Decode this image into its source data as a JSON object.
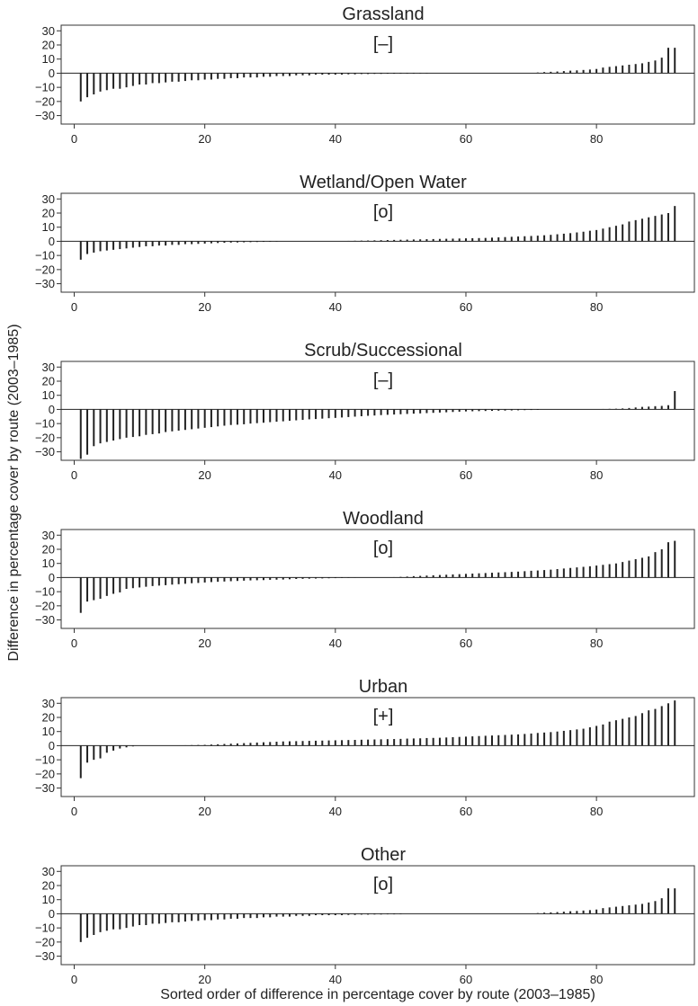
{
  "shared": {
    "ylabel": "Difference in percentage cover by route (2003–1985)",
    "xlabel": "Sorted order of difference in percentage cover by route (2003–1985)",
    "x_ticks": [
      20,
      40,
      60,
      80
    ],
    "y_ticks": [
      30,
      20,
      10,
      0,
      -10,
      -20,
      -30
    ],
    "xlim": [
      -2,
      95
    ],
    "ylim": [
      -36,
      34
    ]
  },
  "chart_data": [
    {
      "type": "bar",
      "title": "Grassland",
      "annotation": "[–]",
      "x": [
        1,
        2,
        3,
        4,
        5,
        6,
        7,
        8,
        9,
        10,
        11,
        12,
        13,
        14,
        15,
        16,
        17,
        18,
        19,
        20,
        21,
        22,
        23,
        24,
        25,
        26,
        27,
        28,
        29,
        30,
        31,
        32,
        33,
        34,
        35,
        36,
        37,
        38,
        39,
        40,
        41,
        42,
        43,
        44,
        45,
        46,
        47,
        48,
        49,
        50,
        51,
        52,
        53,
        54,
        55,
        56,
        57,
        58,
        59,
        60,
        61,
        62,
        63,
        64,
        65,
        66,
        67,
        68,
        69,
        70,
        71,
        72,
        73,
        74,
        75,
        76,
        77,
        78,
        79,
        80,
        81,
        82,
        83,
        84,
        85,
        86,
        87,
        88,
        89,
        90,
        91,
        92
      ],
      "values": [
        -20,
        -17,
        -15,
        -13,
        -12,
        -11,
        -11,
        -10,
        -9,
        -8,
        -8,
        -7,
        -7,
        -6.5,
        -6,
        -6,
        -5.5,
        -5,
        -5,
        -4.5,
        -4.5,
        -4,
        -4,
        -3.5,
        -3.5,
        -3,
        -3,
        -3,
        -2.5,
        -2.5,
        -2,
        -2,
        -2,
        -1.5,
        -1.5,
        -1.5,
        -1,
        -1,
        -1,
        -1,
        -1,
        -0.8,
        -0.8,
        -0.6,
        -0.6,
        -0.5,
        -0.5,
        -0.4,
        -0.4,
        -0.3,
        -0.3,
        -0.3,
        -0.2,
        -0.2,
        0,
        0,
        0,
        0,
        0,
        0,
        0,
        0,
        0,
        0,
        0,
        0,
        0,
        0,
        0,
        0,
        0.5,
        0.8,
        1,
        1.2,
        1.5,
        1.8,
        2,
        2.3,
        2.6,
        3,
        4,
        4.5,
        5,
        5.5,
        6,
        6.5,
        7,
        8,
        9,
        11,
        18,
        18
      ]
    },
    {
      "type": "bar",
      "title": "Wetland/Open Water",
      "annotation": "[o]",
      "x": [
        1,
        2,
        3,
        4,
        5,
        6,
        7,
        8,
        9,
        10,
        11,
        12,
        13,
        14,
        15,
        16,
        17,
        18,
        19,
        20,
        21,
        22,
        23,
        24,
        25,
        26,
        27,
        28,
        29,
        30,
        31,
        32,
        33,
        34,
        35,
        36,
        37,
        38,
        39,
        40,
        41,
        42,
        43,
        44,
        45,
        46,
        47,
        48,
        49,
        50,
        51,
        52,
        53,
        54,
        55,
        56,
        57,
        58,
        59,
        60,
        61,
        62,
        63,
        64,
        65,
        66,
        67,
        68,
        69,
        70,
        71,
        72,
        73,
        74,
        75,
        76,
        77,
        78,
        79,
        80,
        81,
        82,
        83,
        84,
        85,
        86,
        87,
        88,
        89,
        90,
        91,
        92
      ],
      "values": [
        -13,
        -9,
        -8,
        -7,
        -6.5,
        -6,
        -5.5,
        -5,
        -4.5,
        -4,
        -3.5,
        -3.5,
        -3,
        -3,
        -2.5,
        -2.5,
        -2,
        -2,
        -1.8,
        -1.6,
        -1.4,
        -1.2,
        -1,
        -0.9,
        -0.8,
        -0.7,
        -0.6,
        -0.5,
        -0.4,
        -0.3,
        -0.2,
        0,
        0,
        0,
        0,
        0,
        0,
        0,
        0,
        0,
        0,
        0.3,
        0.4,
        0.5,
        0.6,
        0.7,
        0.8,
        0.9,
        1,
        1.1,
        1.2,
        1.3,
        1.4,
        1.5,
        1.6,
        1.7,
        1.8,
        1.9,
        2,
        2.1,
        2.2,
        2.3,
        2.4,
        2.6,
        2.8,
        3,
        3.2,
        3.4,
        3.6,
        3.8,
        4,
        4.3,
        4.6,
        5,
        5.4,
        5.8,
        6.3,
        6.8,
        7.5,
        8,
        9,
        10,
        11,
        12,
        14,
        15,
        16,
        17,
        18,
        19,
        20,
        25
      ]
    },
    {
      "type": "bar",
      "title": "Scrub/Successional",
      "annotation": "[–]",
      "x": [
        1,
        2,
        3,
        4,
        5,
        6,
        7,
        8,
        9,
        10,
        11,
        12,
        13,
        14,
        15,
        16,
        17,
        18,
        19,
        20,
        21,
        22,
        23,
        24,
        25,
        26,
        27,
        28,
        29,
        30,
        31,
        32,
        33,
        34,
        35,
        36,
        37,
        38,
        39,
        40,
        41,
        42,
        43,
        44,
        45,
        46,
        47,
        48,
        49,
        50,
        51,
        52,
        53,
        54,
        55,
        56,
        57,
        58,
        59,
        60,
        61,
        62,
        63,
        64,
        65,
        66,
        67,
        68,
        69,
        70,
        71,
        72,
        73,
        74,
        75,
        76,
        77,
        78,
        79,
        80,
        81,
        82,
        83,
        84,
        85,
        86,
        87,
        88,
        89,
        90,
        91,
        92
      ],
      "values": [
        -35,
        -32,
        -26,
        -24,
        -23,
        -22,
        -21,
        -20,
        -19.5,
        -19,
        -18,
        -17.5,
        -17,
        -16,
        -15.5,
        -15,
        -14.5,
        -14,
        -13.5,
        -13,
        -12.5,
        -12,
        -11.5,
        -11,
        -10.8,
        -10.5,
        -10,
        -9.7,
        -9.4,
        -9,
        -8.7,
        -8.4,
        -8,
        -7.7,
        -7.4,
        -7,
        -6.8,
        -6.5,
        -6.2,
        -6,
        -5.7,
        -5.4,
        -5.1,
        -4.8,
        -4.5,
        -4.3,
        -4,
        -3.8,
        -3.6,
        -3.4,
        -3.2,
        -3,
        -2.8,
        -2.6,
        -2.4,
        -2.2,
        -2,
        -1.8,
        -1.6,
        -1.4,
        -1.3,
        -1.2,
        -1.1,
        -1,
        -0.9,
        -0.8,
        -0.7,
        -0.6,
        -0.5,
        -0.4,
        -0.3,
        0,
        0,
        0,
        0,
        0,
        0,
        0,
        0,
        0,
        0.3,
        0.4,
        0.5,
        0.7,
        1,
        1.4,
        1.8,
        2,
        2.3,
        2.5,
        3,
        13
      ]
    },
    {
      "type": "bar",
      "title": "Woodland",
      "annotation": "[o]",
      "x": [
        1,
        2,
        3,
        4,
        5,
        6,
        7,
        8,
        9,
        10,
        11,
        12,
        13,
        14,
        15,
        16,
        17,
        18,
        19,
        20,
        21,
        22,
        23,
        24,
        25,
        26,
        27,
        28,
        29,
        30,
        31,
        32,
        33,
        34,
        35,
        36,
        37,
        38,
        39,
        40,
        41,
        42,
        43,
        44,
        45,
        46,
        47,
        48,
        49,
        50,
        51,
        52,
        53,
        54,
        55,
        56,
        57,
        58,
        59,
        60,
        61,
        62,
        63,
        64,
        65,
        66,
        67,
        68,
        69,
        70,
        71,
        72,
        73,
        74,
        75,
        76,
        77,
        78,
        79,
        80,
        81,
        82,
        83,
        84,
        85,
        86,
        87,
        88,
        89,
        90,
        91,
        92
      ],
      "values": [
        -25,
        -17,
        -16,
        -15,
        -13,
        -11.5,
        -10.5,
        -8,
        -7.5,
        -7,
        -6.5,
        -6,
        -5.7,
        -5.4,
        -5,
        -4.7,
        -4.4,
        -4,
        -3.8,
        -3.5,
        -3.2,
        -3,
        -2.8,
        -2.6,
        -2.4,
        -2.2,
        -2,
        -1.9,
        -1.8,
        -1.6,
        -1.5,
        -1.4,
        -1.2,
        -1,
        -0.9,
        -0.8,
        -0.7,
        -0.6,
        -0.5,
        -0.4,
        -0.3,
        -0.2,
        -0.1,
        0,
        0,
        0,
        0,
        0,
        0.3,
        0.5,
        0.7,
        1,
        1.2,
        1.4,
        1.6,
        1.8,
        2,
        2.2,
        2.4,
        2.6,
        2.8,
        3,
        3.2,
        3.4,
        3.6,
        3.8,
        4,
        4.2,
        4.5,
        4.8,
        5,
        5.3,
        5.6,
        6,
        6.4,
        6.8,
        7.2,
        7.6,
        8,
        8.5,
        9,
        9.5,
        10,
        11,
        12,
        13,
        14,
        15,
        18,
        20,
        25,
        26
      ]
    },
    {
      "type": "bar",
      "title": "Urban",
      "annotation": "[+]",
      "x": [
        1,
        2,
        3,
        4,
        5,
        6,
        7,
        8,
        9,
        10,
        11,
        12,
        13,
        14,
        15,
        16,
        17,
        18,
        19,
        20,
        21,
        22,
        23,
        24,
        25,
        26,
        27,
        28,
        29,
        30,
        31,
        32,
        33,
        34,
        35,
        36,
        37,
        38,
        39,
        40,
        41,
        42,
        43,
        44,
        45,
        46,
        47,
        48,
        49,
        50,
        51,
        52,
        53,
        54,
        55,
        56,
        57,
        58,
        59,
        60,
        61,
        62,
        63,
        64,
        65,
        66,
        67,
        68,
        69,
        70,
        71,
        72,
        73,
        74,
        75,
        76,
        77,
        78,
        79,
        80,
        81,
        82,
        83,
        84,
        85,
        86,
        87,
        88,
        89,
        90,
        91,
        92
      ],
      "values": [
        -23,
        -12,
        -10,
        -9,
        -5,
        -3.5,
        -2,
        -1.2,
        -0.5,
        0,
        0,
        0,
        0,
        0,
        0,
        0.2,
        0.3,
        0.4,
        0.5,
        0.6,
        0.8,
        1,
        1.2,
        1.4,
        1.6,
        1.8,
        2,
        2.2,
        2.4,
        2.6,
        2.8,
        3,
        3.1,
        3.2,
        3.3,
        3.4,
        3.5,
        3.6,
        3.7,
        3.8,
        3.9,
        4,
        4.1,
        4.2,
        4.3,
        4.4,
        4.5,
        4.6,
        4.7,
        4.8,
        5,
        5.1,
        5.2,
        5.4,
        5.5,
        5.6,
        5.8,
        6,
        6.2,
        6.4,
        6.6,
        6.8,
        7,
        7.2,
        7.4,
        7.6,
        7.8,
        8,
        8.3,
        8.6,
        9,
        9.3,
        9.6,
        10,
        10.5,
        11,
        11.5,
        12,
        13,
        14,
        15,
        17,
        18,
        19,
        20,
        21,
        23,
        25,
        26,
        28,
        30,
        32
      ]
    },
    {
      "type": "bar",
      "title": "Other",
      "annotation": "[o]",
      "x": [
        1,
        2,
        3,
        4,
        5,
        6,
        7,
        8,
        9,
        10,
        11,
        12,
        13,
        14,
        15,
        16,
        17,
        18,
        19,
        20,
        21,
        22,
        23,
        24,
        25,
        26,
        27,
        28,
        29,
        30,
        31,
        32,
        33,
        34,
        35,
        36,
        37,
        38,
        39,
        40,
        41,
        42,
        43,
        44,
        45,
        46,
        47,
        48,
        49,
        50,
        51,
        52,
        53,
        54,
        55,
        56,
        57,
        58,
        59,
        60,
        61,
        62,
        63,
        64,
        65,
        66,
        67,
        68,
        69,
        70,
        71,
        72,
        73,
        74,
        75,
        76,
        77,
        78,
        79,
        80,
        81,
        82,
        83,
        84,
        85,
        86,
        87,
        88,
        89,
        90,
        91,
        92
      ],
      "values": [
        -20,
        -17,
        -15,
        -13,
        -12,
        -11,
        -11,
        -10,
        -9,
        -8,
        -8,
        -7,
        -7,
        -6.5,
        -6,
        -6,
        -5.5,
        -5,
        -5,
        -4.5,
        -4.5,
        -4,
        -4,
        -3.5,
        -3.5,
        -3,
        -3,
        -3,
        -2.5,
        -2.5,
        -2,
        -2,
        -2,
        -1.5,
        -1.5,
        -1.5,
        -1,
        -1,
        -1,
        -1,
        -1,
        -0.8,
        -0.8,
        -0.6,
        -0.6,
        -0.5,
        -0.5,
        -0.4,
        -0.4,
        -0.3,
        0,
        0,
        0,
        0,
        0,
        0,
        0,
        0,
        0,
        0,
        0,
        0,
        0,
        0,
        0,
        0,
        0,
        0,
        0,
        0,
        0.5,
        0.8,
        1,
        1.2,
        1.5,
        1.8,
        2,
        2.3,
        2.6,
        3,
        4,
        4.5,
        5,
        5.5,
        6,
        6.5,
        7,
        8,
        9,
        11,
        18,
        18
      ]
    }
  ]
}
